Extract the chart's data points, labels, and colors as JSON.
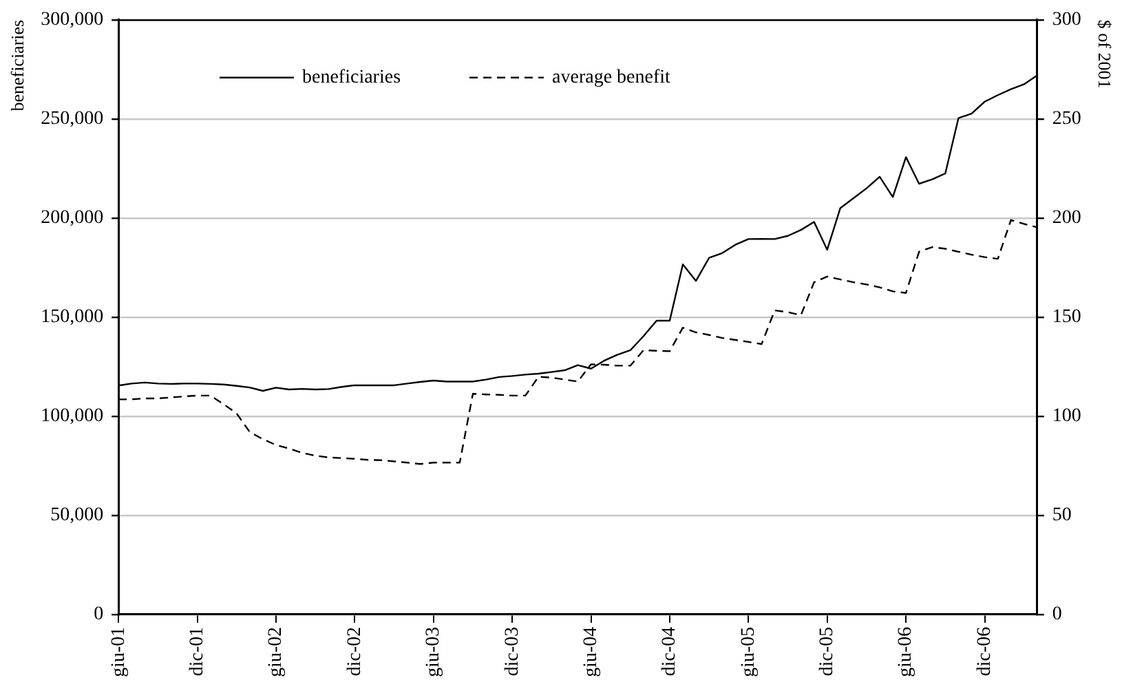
{
  "chart_data": {
    "type": "line",
    "ylabel": "beneficiaries",
    "y2label": "$ of 2001",
    "categories": [
      "giu-01",
      null,
      null,
      null,
      null,
      null,
      "dic-01",
      null,
      null,
      null,
      null,
      null,
      "giu-02",
      null,
      null,
      null,
      null,
      null,
      "dic-02",
      null,
      null,
      null,
      null,
      null,
      "giu-03",
      null,
      null,
      null,
      null,
      null,
      "dic-03",
      null,
      null,
      null,
      null,
      null,
      "giu-04",
      null,
      null,
      null,
      null,
      null,
      "dic-04",
      null,
      null,
      null,
      null,
      null,
      "giu-05",
      null,
      null,
      null,
      null,
      null,
      "dic-05",
      null,
      null,
      null,
      null,
      null,
      "giu-06",
      null,
      null,
      null,
      null,
      null,
      "dic-06",
      null,
      null,
      null,
      null
    ],
    "series": [
      {
        "name": "beneficiaries",
        "color": "#000000",
        "line_style": "solid",
        "values": [
          115500,
          116500,
          117000,
          116500,
          116300,
          116500,
          116500,
          116300,
          116000,
          115300,
          114500,
          112800,
          114400,
          113500,
          113800,
          113500,
          113700,
          114800,
          115600,
          115600,
          115600,
          115600,
          116500,
          117300,
          118000,
          117500,
          117500,
          117500,
          118500,
          119800,
          120300,
          121000,
          121500,
          122300,
          123200,
          125800,
          124000,
          128000,
          131000,
          133300,
          140400,
          148200,
          148200,
          176600,
          168300,
          179900,
          182300,
          186500,
          189400,
          189500,
          189400,
          191000,
          194000,
          198000,
          184000,
          205000,
          210000,
          215000,
          220800,
          210600,
          230700,
          217300,
          219500,
          222500,
          250400,
          252700,
          258700,
          262000,
          265000,
          267500,
          272000
        ]
      },
      {
        "name": "average benefit",
        "color": "#000000",
        "line_style": "dashed",
        "axis": "y2",
        "values": [
          108.5,
          108.5,
          109,
          109,
          109.5,
          110,
          110.4,
          110.4,
          106.1,
          101.4,
          92,
          88.4,
          85.5,
          83.7,
          81.5,
          80.1,
          79.2,
          78.9,
          78.5,
          78,
          77.8,
          77.2,
          76.6,
          75.9,
          76.6,
          76.6,
          76.6,
          111.3,
          111,
          110.8,
          110.4,
          110.4,
          119.9,
          119.5,
          118.5,
          117.5,
          126.2,
          126,
          125.5,
          125.5,
          133.3,
          133,
          132.8,
          144.7,
          142.3,
          141,
          139.5,
          138.5,
          137.5,
          136.4,
          153.4,
          152.5,
          151,
          167.6,
          170.5,
          169,
          167.6,
          166.5,
          165,
          163,
          162.2,
          183,
          185.3,
          184.5,
          183,
          181.5,
          180.3,
          179.4,
          199,
          197,
          195.3
        ]
      }
    ],
    "ylim": [
      0,
      300000
    ],
    "yticks": [
      {
        "value": 0,
        "label": "0"
      },
      {
        "value": 50000,
        "label": "50,000"
      },
      {
        "value": 100000,
        "label": "100,000"
      },
      {
        "value": 150000,
        "label": "150,000"
      },
      {
        "value": 200000,
        "label": "200,000"
      },
      {
        "value": 250000,
        "label": "250,000"
      },
      {
        "value": 300000,
        "label": "300,000"
      }
    ],
    "y2lim": [
      0,
      300
    ],
    "y2ticks": [
      0,
      50,
      100,
      150,
      200,
      250,
      300
    ],
    "grid": "y",
    "legend": "top left",
    "marker": "none"
  }
}
